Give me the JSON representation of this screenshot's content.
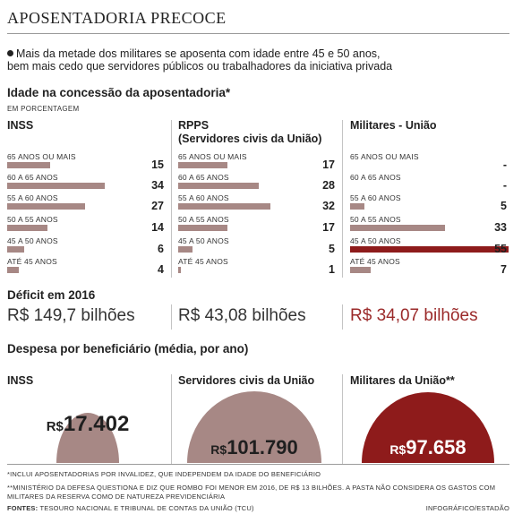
{
  "title": "APOSENTADORIA PRECOCE",
  "intro": {
    "line1": "Mais da metade dos militares se aposenta com idade entre 45 e 50 anos,",
    "line2": "bem mais cedo que servidores públicos ou trabalhadores da iniciativa privada"
  },
  "colors": {
    "bar": "#a78885",
    "highlight": "#8e1b1b",
    "semicircle_light": "#a78885",
    "semicircle_dark": "#8e1b1b"
  },
  "chart_data": [
    {
      "type": "bar",
      "title": "Idade na concessão da aposentadoria*",
      "subtitle": "EM PORCENTAGEM",
      "categories": [
        "65 ANOS OU MAIS",
        "60 A 65 ANOS",
        "55 A 60 ANOS",
        "50 A 55 ANOS",
        "45 A 50 ANOS",
        "ATÉ 45 ANOS"
      ],
      "series": [
        {
          "name": "INSS",
          "values": [
            15,
            34,
            27,
            14,
            6,
            4
          ]
        },
        {
          "name": "RPPS (Servidores civis da União)",
          "values": [
            17,
            28,
            32,
            17,
            5,
            1
          ]
        },
        {
          "name": "Militares - União",
          "values": [
            null,
            null,
            5,
            33,
            55,
            7
          ]
        }
      ]
    },
    {
      "type": "bar",
      "title": "Despesa por beneficiário (média, por ano)",
      "categories": [
        "INSS",
        "Servidores civis da União",
        "Militares da União**"
      ],
      "values": [
        17402,
        101790,
        97658
      ],
      "display": [
        "R$ 17.402",
        "R$ 101.790",
        "R$ 97.658"
      ]
    }
  ],
  "age_chart": {
    "columns": [
      {
        "header1": "INSS",
        "header2": "",
        "rows": [
          {
            "label": "65 ANOS OU MAIS",
            "value": 15,
            "display": "15"
          },
          {
            "label": "60 A 65 ANOS",
            "value": 34,
            "display": "34"
          },
          {
            "label": "55 A 60 ANOS",
            "value": 27,
            "display": "27"
          },
          {
            "label": "50 A 55 ANOS",
            "value": 14,
            "display": "14"
          },
          {
            "label": "45 A 50 ANOS",
            "value": 6,
            "display": "6"
          },
          {
            "label": "ATÉ 45 ANOS",
            "value": 4,
            "display": "4"
          }
        ]
      },
      {
        "header1": "RPPS",
        "header2": "(Servidores civis da União)",
        "rows": [
          {
            "label": "65 ANOS OU MAIS",
            "value": 17,
            "display": "17"
          },
          {
            "label": "60 A 65 ANOS",
            "value": 28,
            "display": "28"
          },
          {
            "label": "55 A 60 ANOS",
            "value": 32,
            "display": "32"
          },
          {
            "label": "50 A 55 ANOS",
            "value": 17,
            "display": "17"
          },
          {
            "label": "45 A 50 ANOS",
            "value": 5,
            "display": "5"
          },
          {
            "label": "ATÉ 45 ANOS",
            "value": 1,
            "display": "1"
          }
        ]
      },
      {
        "header1": "Militares - União",
        "header2": "",
        "rows": [
          {
            "label": "65 ANOS OU MAIS",
            "value": 0,
            "display": "-"
          },
          {
            "label": "60 A 65 ANOS",
            "value": 0,
            "display": "-"
          },
          {
            "label": "55 A 60 ANOS",
            "value": 5,
            "display": "5"
          },
          {
            "label": "50 A 55 ANOS",
            "value": 33,
            "display": "33"
          },
          {
            "label": "45 A 50 ANOS",
            "value": 55,
            "display": "55",
            "highlight": true
          },
          {
            "label": "ATÉ 45 ANOS",
            "value": 7,
            "display": "7"
          }
        ]
      }
    ]
  },
  "deficit": {
    "title": "Déficit em 2016",
    "items": [
      {
        "prefix": "R$",
        "amount": "149,7",
        "unit": "bilhões"
      },
      {
        "prefix": "R$",
        "amount": "43,08",
        "unit": "bilhões"
      },
      {
        "prefix": "R$",
        "amount": "34,07",
        "unit": "bilhões",
        "red": true
      }
    ]
  },
  "spend": {
    "title": "Despesa por beneficiário (média, por ano)",
    "items": [
      {
        "label": "INSS",
        "prefix": "R$",
        "amount": "17.402"
      },
      {
        "label": "Servidores civis da União",
        "prefix": "R$",
        "amount": "101.790"
      },
      {
        "label": "Militares da União**",
        "prefix": "R$",
        "amount": "97.658"
      }
    ]
  },
  "footnotes": {
    "note1": "*INCLUI APOSENTADORIAS POR INVALIDEZ, QUE INDEPENDEM DA IDADE DO BENEFICIÁRIO",
    "note2a": "**MINISTÉRIO DA DEFESA QUESTIONA E DIZ QUE ROMBO FOI MENOR EM 2016, DE R$ 13 BILHÕES. A PASTA NÃO CONSIDERA OS GASTOS COM",
    "note2b": "MILITARES DA RESERVA COMO DE NATUREZA PREVIDENCIÁRIA",
    "sources_label": "FONTES:",
    "sources": "TESOURO NACIONAL E TRIBUNAL DE CONTAS DA UNIÃO (TCU)",
    "credit": "INFOGRÁFICO/ESTADÃO"
  }
}
